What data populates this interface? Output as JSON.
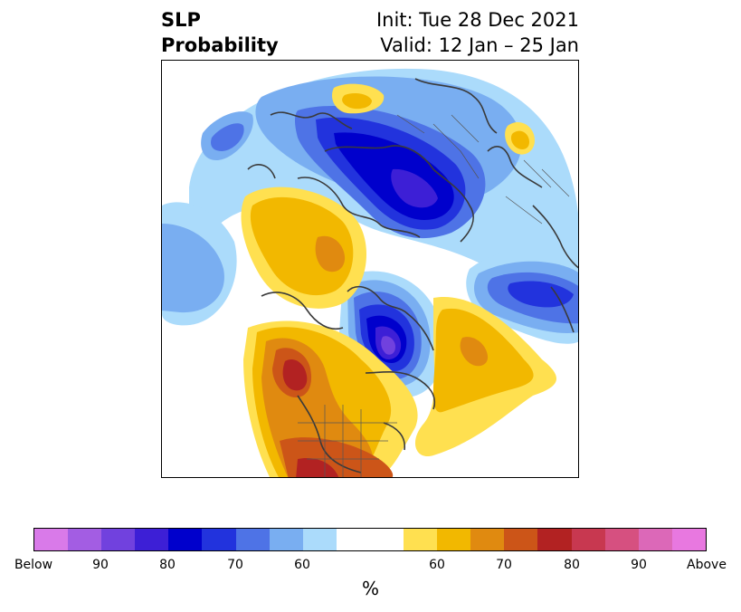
{
  "header": {
    "title_line1": "SLP",
    "title_line2": "Probability",
    "init_text": "Init: Tue 28 Dec 2021",
    "valid_text": "Valid: 12 Jan – 25 Jan"
  },
  "colorbar": {
    "colors": [
      "#d97ae9",
      "#a35de3",
      "#7141de",
      "#3d1fd6",
      "#0000cc",
      "#2233dd",
      "#4e73e6",
      "#79aef1",
      "#abdbfb",
      "#ffffff",
      "#ffffff",
      "#ffe050",
      "#f2b800",
      "#e08a10",
      "#cc5518",
      "#b22222",
      "#c83850",
      "#d65080",
      "#dc68b8",
      "#e878e0"
    ],
    "tick_labels": [
      "Below",
      "90",
      "80",
      "70",
      "60",
      "60",
      "70",
      "80",
      "90",
      "Above"
    ],
    "unit_label": "%"
  },
  "map": {
    "regions": [
      {
        "color": "#abdbfb",
        "level": "below-60"
      },
      {
        "color": "#79aef1",
        "level": "below-65"
      },
      {
        "color": "#4e73e6",
        "level": "below-70"
      },
      {
        "color": "#2233dd",
        "level": "below-75"
      },
      {
        "color": "#0000cc",
        "level": "below-80"
      },
      {
        "color": "#3d1fd6",
        "level": "below-85"
      },
      {
        "color": "#7141de",
        "level": "below-90"
      },
      {
        "color": "#ffe050",
        "level": "above-55"
      },
      {
        "color": "#f2b800",
        "level": "above-60"
      },
      {
        "color": "#e08a10",
        "level": "above-65"
      },
      {
        "color": "#cc5518",
        "level": "above-70"
      },
      {
        "color": "#b22222",
        "level": "above-75"
      }
    ]
  }
}
